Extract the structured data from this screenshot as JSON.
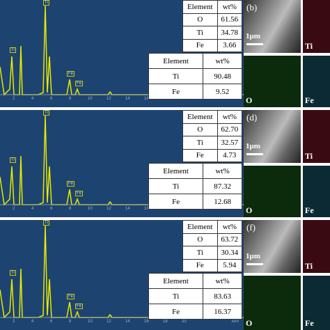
{
  "panels": [
    {
      "table1": {
        "header": [
          "Element",
          "wt%"
        ],
        "rows": [
          [
            "O",
            "61.56"
          ],
          [
            "Ti",
            "34.78"
          ],
          [
            "Fe",
            "3.66"
          ]
        ]
      },
      "table2": {
        "header": [
          "Element",
          "wt%"
        ],
        "rows": [
          [
            "Ti",
            "90.48"
          ],
          [
            "Fe",
            "9.52"
          ]
        ]
      },
      "sem_label": "(b)",
      "scale": "1μm",
      "maps": [
        "Ti",
        "O",
        "Fe"
      ]
    },
    {
      "table1": {
        "header": [
          "Element",
          "wt%"
        ],
        "rows": [
          [
            "O",
            "62.70"
          ],
          [
            "Ti",
            "32.57"
          ],
          [
            "Fe",
            "4.73"
          ]
        ]
      },
      "table2": {
        "header": [
          "Element",
          "wt%"
        ],
        "rows": [
          [
            "Ti",
            "87.32"
          ],
          [
            "Fe",
            "12.68"
          ]
        ]
      },
      "sem_label": "(d)",
      "scale": "1μm",
      "maps": [
        "Ti",
        "O",
        "Fe"
      ]
    },
    {
      "table1": {
        "header": [
          "Element",
          "wt%"
        ],
        "rows": [
          [
            "O",
            "63.72"
          ],
          [
            "Ti",
            "30.34"
          ],
          [
            "Fe",
            "5.94"
          ]
        ]
      },
      "table2": {
        "header": [
          "Element",
          "wt%"
        ],
        "rows": [
          [
            "Ti",
            "83.63"
          ],
          [
            "Fe",
            "16.37"
          ]
        ]
      },
      "sem_label": "(f)",
      "scale": "1μm",
      "maps": [
        "Ti",
        "O",
        "Fe"
      ]
    }
  ],
  "spectrum": {
    "peak_labels": [
      "Ti",
      "Ti",
      "Fe",
      "Fe"
    ],
    "ticks": [
      "2",
      "4",
      "6",
      "8",
      "10",
      "12",
      "14",
      "16",
      "18",
      "20"
    ],
    "unit": "keV"
  }
}
